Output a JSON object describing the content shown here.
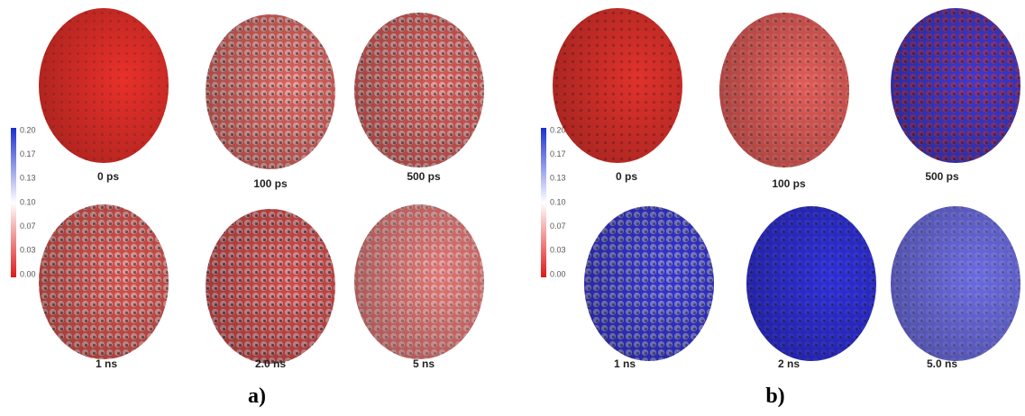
{
  "panels": [
    {
      "label": "a)",
      "colorbar_ticks": [
        "0.20",
        "0.17",
        "0.13",
        "0.10",
        "0.07",
        "0.03",
        "0.00"
      ],
      "snapshots": [
        "0 ps",
        "100 ps",
        "500 ps",
        "1 ns",
        "2.0 ns",
        "5 ns"
      ]
    },
    {
      "label": "b)",
      "colorbar_ticks": [
        "0.20",
        "0.17",
        "0.13",
        "0.10",
        "0.07",
        "0.03",
        "0.00"
      ],
      "snapshots": [
        "0 ps",
        "100 ps",
        "500 ps",
        "1 ns",
        "2 ns",
        "5.0 ns"
      ]
    }
  ]
}
